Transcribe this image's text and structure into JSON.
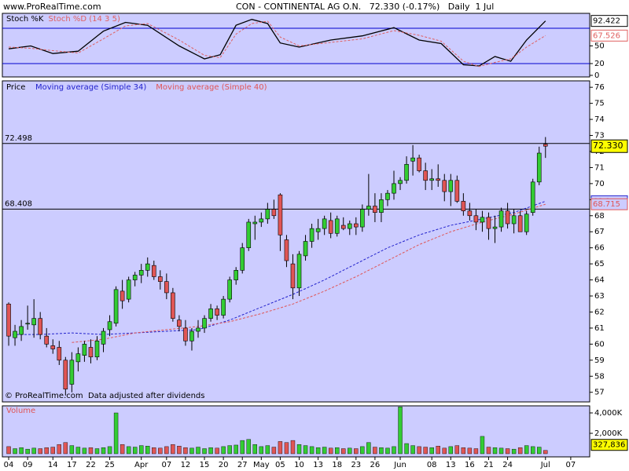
{
  "header": {
    "site": "www.ProRealTime.com",
    "title": "CON - CONTINENTAL AG O.N.   72.330 (-0.17%)   Daily  1 Jul"
  },
  "chart_data": [
    {
      "type": "line",
      "series": [
        {
          "name": "Stoch %K",
          "color": "#000000",
          "dash": false,
          "x": [
            0,
            3.5,
            7,
            11,
            15,
            18.5,
            22,
            27,
            31,
            33.5,
            36,
            38.5,
            41,
            43,
            46,
            51,
            56,
            61,
            65,
            68.5,
            72,
            74.5,
            77,
            79.5,
            82,
            85
          ],
          "values": [
            45,
            50,
            37,
            41,
            75,
            90,
            85,
            50,
            28,
            35,
            85,
            95,
            88,
            55,
            48,
            60,
            67,
            81,
            60,
            54,
            18,
            16,
            32,
            24,
            60,
            92.422
          ]
        },
        {
          "name": "Stoch %D (14 3 5)",
          "color": "#e06060",
          "dash": true,
          "x": [
            0,
            3.5,
            7,
            11,
            15,
            18.5,
            22,
            27,
            31,
            33.5,
            36,
            38.5,
            41,
            43,
            46,
            51,
            56,
            61,
            65,
            68.5,
            72,
            74.5,
            77,
            79.5,
            82,
            85
          ],
          "values": [
            48,
            46,
            42,
            38,
            62,
            84,
            88,
            60,
            34,
            30,
            70,
            88,
            92,
            65,
            50,
            56,
            62,
            76,
            68,
            58,
            24,
            15,
            22,
            28,
            48,
            67.526
          ]
        }
      ],
      "levels": [
        20,
        80
      ],
      "level_color": "#0000cc",
      "ylim": [
        -2.7,
        105.3
      ],
      "yticks": [
        0,
        20,
        50
      ],
      "xlim": [
        -1,
        92
      ]
    },
    {
      "type": "candlestick",
      "name": "Price",
      "up_color": "#33cc33",
      "down_color": "#e05555",
      "open": [
        62.5,
        60.4,
        60.6,
        61.3,
        61.2,
        61.6,
        60.5,
        59.9,
        59.8,
        59.0,
        57.5,
        58.9,
        59.3,
        59.8,
        59.2,
        60.0,
        60.9,
        61.3,
        63.3,
        62.8,
        64.0,
        64.3,
        64.6,
        64.9,
        64.2,
        63.9,
        63.2,
        61.5,
        61.0,
        60.2,
        60.8,
        61.0,
        61.6,
        62.2,
        61.8,
        62.8,
        64.0,
        64.6,
        66.0,
        67.5,
        67.6,
        67.8,
        68.4,
        69.3,
        66.5,
        65.0,
        63.5,
        65.5,
        66.4,
        67.0,
        67.2,
        67.7,
        66.9,
        67.4,
        67.2,
        67.5,
        67.3,
        68.4,
        68.6,
        68.2,
        69.0,
        69.4,
        70.0,
        70.2,
        71.4,
        71.6,
        70.8,
        70.2,
        70.3,
        70.2,
        69.5,
        70.2,
        68.9,
        68.3,
        68.0,
        67.6,
        67.9,
        67.2,
        67.3,
        68.3,
        67.5,
        68.0,
        67.0,
        68.2,
        70.1,
        72.45
      ],
      "high": [
        62.6,
        61.2,
        61.5,
        62.4,
        62.8,
        62.0,
        61.0,
        60.3,
        60.2,
        59.2,
        59.5,
        59.8,
        60.2,
        60.3,
        60.5,
        61.0,
        61.8,
        63.6,
        64.0,
        64.2,
        64.5,
        65.0,
        65.4,
        65.2,
        64.6,
        64.4,
        63.5,
        61.8,
        61.5,
        61.0,
        61.5,
        61.8,
        62.5,
        62.4,
        63.0,
        64.2,
        64.8,
        66.3,
        67.8,
        68.0,
        68.2,
        68.8,
        69.0,
        69.4,
        66.8,
        65.6,
        65.8,
        66.8,
        67.5,
        67.8,
        68.0,
        68.2,
        68.0,
        67.9,
        67.7,
        67.9,
        68.7,
        70.6,
        69.4,
        69.4,
        69.6,
        70.8,
        70.4,
        71.7,
        72.4,
        71.8,
        71.3,
        70.9,
        71.2,
        70.6,
        70.6,
        70.5,
        69.4,
        68.8,
        68.4,
        68.3,
        68.2,
        68.0,
        68.5,
        68.8,
        68.4,
        68.3,
        68.3,
        70.3,
        72.3,
        72.9
      ],
      "low": [
        59.9,
        59.9,
        60.2,
        60.9,
        60.4,
        60.3,
        59.8,
        59.4,
        58.7,
        56.8,
        57.0,
        58.3,
        58.9,
        58.8,
        59.0,
        59.5,
        60.5,
        61.1,
        62.2,
        62.6,
        63.6,
        63.8,
        64.2,
        64.0,
        63.4,
        62.8,
        61.4,
        60.8,
        59.9,
        59.6,
        60.4,
        60.7,
        61.4,
        61.5,
        61.6,
        62.6,
        63.7,
        64.4,
        65.8,
        66.5,
        67.3,
        67.5,
        67.8,
        65.8,
        64.8,
        62.8,
        63.0,
        65.2,
        66.0,
        66.5,
        66.8,
        66.6,
        66.7,
        67.1,
        66.8,
        66.8,
        67.0,
        68.0,
        67.6,
        67.6,
        68.6,
        69.0,
        69.6,
        70.0,
        70.5,
        70.7,
        69.6,
        69.6,
        69.8,
        68.9,
        68.6,
        68.8,
        68.0,
        67.7,
        67.1,
        67.0,
        66.5,
        66.3,
        67.0,
        67.2,
        66.9,
        67.0,
        66.8,
        68.0,
        69.9,
        71.6
      ],
      "close": [
        60.5,
        60.8,
        61.1,
        61.3,
        61.6,
        60.6,
        60.0,
        59.7,
        59.0,
        57.2,
        59.0,
        59.4,
        60.0,
        59.2,
        60.2,
        60.8,
        61.4,
        63.4,
        62.7,
        64.0,
        64.3,
        64.6,
        65.0,
        64.2,
        63.9,
        63.2,
        61.6,
        61.1,
        60.2,
        60.8,
        61.0,
        61.6,
        62.2,
        61.8,
        62.8,
        64.0,
        64.6,
        66.0,
        67.6,
        67.6,
        67.8,
        68.4,
        68.0,
        66.8,
        65.2,
        63.5,
        65.6,
        66.4,
        67.2,
        67.2,
        67.8,
        66.9,
        67.8,
        67.2,
        67.5,
        67.3,
        68.4,
        68.6,
        68.2,
        69.0,
        69.4,
        70.0,
        70.2,
        71.2,
        71.6,
        70.8,
        70.2,
        70.3,
        70.2,
        69.5,
        70.2,
        68.9,
        68.3,
        68.0,
        67.6,
        67.9,
        67.2,
        67.3,
        68.3,
        67.5,
        68.0,
        67.0,
        68.1,
        70.1,
        71.9,
        72.33
      ],
      "last_label": "72.330",
      "series": [
        {
          "name": "Moving average (Simple 34)",
          "color": "#2222cc",
          "dash": true,
          "x": [
            0,
            5,
            10,
            15,
            20,
            25,
            30,
            35,
            40,
            45,
            50,
            55,
            60,
            65,
            70,
            75,
            80,
            85
          ],
          "values": [
            60.6,
            60.6,
            60.7,
            60.6,
            60.7,
            60.8,
            60.9,
            61.5,
            62.3,
            63.1,
            64.0,
            65.0,
            66.0,
            66.8,
            67.4,
            67.8,
            68.2,
            68.9
          ]
        },
        {
          "name": "Moving average (Simple 40)",
          "color": "#e05555",
          "dash": true,
          "x": [
            10,
            15,
            20,
            25,
            30,
            35,
            40,
            45,
            50,
            55,
            60,
            65,
            70,
            75,
            80,
            85
          ],
          "values": [
            60.1,
            60.3,
            60.7,
            60.9,
            61.1,
            61.4,
            61.9,
            62.5,
            63.3,
            64.2,
            65.2,
            66.2,
            67.0,
            67.6,
            68.1,
            68.715
          ]
        }
      ],
      "levels": [
        72.498,
        68.408
      ],
      "note": "© ProRealTime.com  Data adjusted after dividends",
      "ylim": [
        56.4,
        76.4
      ],
      "yticks": [
        57,
        58,
        59,
        60,
        61,
        62,
        63,
        64,
        65,
        66,
        67,
        68,
        69,
        70,
        71,
        72,
        73,
        74,
        75,
        76
      ],
      "xlim": [
        -1,
        92
      ]
    },
    {
      "type": "bar",
      "title": "Volume",
      "values": [
        700,
        500,
        600,
        450,
        550,
        500,
        600,
        650,
        900,
        1100,
        800,
        650,
        550,
        600,
        500,
        600,
        700,
        4000,
        900,
        700,
        650,
        800,
        750,
        600,
        550,
        700,
        900,
        750,
        600,
        550,
        650,
        500,
        600,
        550,
        700,
        800,
        850,
        1300,
        1400,
        900,
        700,
        800,
        650,
        1200,
        1100,
        1300,
        900,
        800,
        700,
        600,
        650,
        550,
        600,
        500,
        550,
        500,
        700,
        1100,
        650,
        600,
        550,
        700,
        4600,
        1000,
        800,
        700,
        650,
        600,
        750,
        550,
        700,
        800,
        600,
        550,
        500,
        1700,
        650,
        600,
        550,
        500,
        450,
        600,
        800,
        700,
        650,
        327.836
      ],
      "last_label": "327,836",
      "ylim": [
        -308,
        4692
      ],
      "yticks": [
        {
          "value": 2000,
          "label": "2,000K"
        },
        {
          "value": 4000,
          "label": "4,000K"
        }
      ],
      "xlim": [
        -1,
        92
      ],
      "xticks": [
        {
          "value": 0,
          "label": "04"
        },
        {
          "value": 3,
          "label": "09"
        },
        {
          "value": 7,
          "label": "14"
        },
        {
          "value": 10,
          "label": "17"
        },
        {
          "value": 13,
          "label": "22"
        },
        {
          "value": 16,
          "label": "25"
        },
        {
          "value": 21,
          "label": "Apr"
        },
        {
          "value": 25,
          "label": "07"
        },
        {
          "value": 28,
          "label": "12"
        },
        {
          "value": 31,
          "label": "15"
        },
        {
          "value": 34,
          "label": "20"
        },
        {
          "value": 37,
          "label": "27"
        },
        {
          "value": 40,
          "label": "May"
        },
        {
          "value": 43,
          "label": "05"
        },
        {
          "value": 46,
          "label": "10"
        },
        {
          "value": 49,
          "label": "13"
        },
        {
          "value": 52,
          "label": "18"
        },
        {
          "value": 55,
          "label": "23"
        },
        {
          "value": 58,
          "label": "26"
        },
        {
          "value": 62,
          "label": "Jun"
        },
        {
          "value": 67,
          "label": "08"
        },
        {
          "value": 70,
          "label": "13"
        },
        {
          "value": 73,
          "label": "16"
        },
        {
          "value": 76,
          "label": "21"
        },
        {
          "value": 79,
          "label": "24"
        },
        {
          "value": 85,
          "label": "Jul"
        },
        {
          "value": 89,
          "label": "07"
        }
      ]
    }
  ]
}
